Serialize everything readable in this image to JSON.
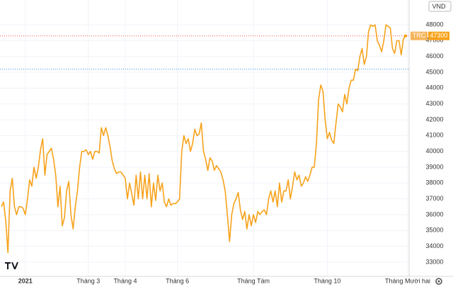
{
  "chart_data": {
    "type": "line",
    "currency": "VND",
    "categories": [
      null,
      null,
      null,
      null,
      null,
      null,
      null,
      null,
      null,
      null,
      null,
      "2021",
      null,
      null,
      null,
      null,
      null,
      null,
      null,
      null,
      null,
      null,
      null,
      null,
      null,
      null,
      null,
      null,
      null,
      null,
      null,
      null,
      null,
      null,
      null,
      null,
      null,
      null,
      null,
      null,
      "Tháng 3",
      null,
      null,
      null,
      null,
      null,
      null,
      null,
      null,
      null,
      null,
      null,
      null,
      null,
      null,
      null,
      null,
      "Tháng 4",
      null,
      null,
      null,
      null,
      null,
      null,
      null,
      null,
      null,
      null,
      null,
      null,
      null,
      null,
      null,
      null,
      null,
      null,
      null,
      null,
      null,
      null,
      null,
      "Tháng 6",
      null,
      null,
      null,
      null,
      null,
      null,
      null,
      null,
      null,
      null,
      null,
      null,
      null,
      null,
      null,
      null,
      null,
      null,
      null,
      null,
      null,
      null,
      null,
      null,
      null,
      null,
      null,
      null,
      null,
      null,
      null,
      null,
      null,
      null,
      "Tháng Tám",
      null,
      null,
      null,
      null,
      null,
      null,
      null,
      null,
      null,
      null,
      null,
      null,
      null,
      null,
      null,
      null,
      null,
      null,
      null,
      null,
      null,
      null,
      null,
      null,
      null,
      null,
      null,
      null,
      null,
      null,
      null,
      null,
      null,
      "Tháng 10",
      null,
      null,
      null,
      null,
      null,
      null,
      null,
      null,
      null,
      null,
      null,
      null,
      null,
      null,
      null,
      null,
      null,
      null,
      null,
      null,
      null,
      null,
      null,
      null,
      null,
      null,
      null,
      null,
      null,
      null,
      null,
      null,
      null,
      null,
      null,
      null,
      "Tháng Mười hai"
    ],
    "series": [
      {
        "name": "TRC",
        "color": "#f7a21b",
        "values": [
          36500,
          36800,
          35600,
          33600,
          37500,
          38300,
          36500,
          36000,
          36500,
          36500,
          36400,
          36000,
          37000,
          38200,
          37800,
          39000,
          38300,
          39000,
          40100,
          40800,
          38500,
          39800,
          40000,
          40200,
          39500,
          38500,
          36500,
          37800,
          35300,
          35800,
          37500,
          38100,
          36000,
          35100,
          36500,
          37500,
          39000,
          40000,
          40000,
          40100,
          39800,
          40000,
          39500,
          40000,
          40000,
          39900,
          41500,
          41000,
          41500,
          41000,
          40300,
          39400,
          38900,
          38600,
          38700,
          38700,
          38500,
          38300,
          37000,
          38000,
          37300,
          36600,
          38500,
          37000,
          38700,
          37000,
          38500,
          37000,
          38600,
          36500,
          38000,
          36900,
          38500,
          37500,
          38000,
          36800,
          36500,
          37000,
          36600,
          36700,
          36700,
          36800,
          37000,
          40000,
          41000,
          40500,
          40800,
          40000,
          40500,
          41400,
          41000,
          41100,
          41800,
          40000,
          39500,
          38800,
          39600,
          39400,
          38800,
          39100,
          38900,
          38700,
          38200,
          37500,
          36000,
          34300,
          36000,
          36700,
          37000,
          37400,
          36300,
          35700,
          36200,
          35100,
          36000,
          35300,
          36000,
          35500,
          36200,
          36000,
          36200,
          36300,
          36000,
          37000,
          37500,
          36800,
          37500,
          36500,
          38000,
          36800,
          37500,
          37500,
          38200,
          37000,
          37800,
          38700,
          38200,
          38500,
          37800,
          38000,
          38400,
          38100,
          38500,
          39000,
          39000,
          40500,
          43300,
          44200,
          43800,
          42000,
          40800,
          41200,
          40700,
          40500,
          41800,
          43000,
          42800,
          42500,
          43600,
          43000,
          44000,
          44500,
          44500,
          45200,
          45100,
          46000,
          46500,
          45500,
          46000,
          47600,
          48000,
          47900,
          48000,
          47000,
          46700,
          46300,
          47000,
          48000,
          47900,
          47800,
          46500,
          46200,
          47000,
          47000,
          46100,
          47100,
          47300,
          null
        ]
      }
    ],
    "price_line": 45200,
    "ylim": [
      32100,
      49570
    ],
    "yticks": [
      33000,
      34000,
      35000,
      36000,
      37000,
      38000,
      39000,
      40000,
      41000,
      42000,
      43000,
      44000,
      45000,
      46000,
      47000,
      48000
    ],
    "grid": true
  }
}
